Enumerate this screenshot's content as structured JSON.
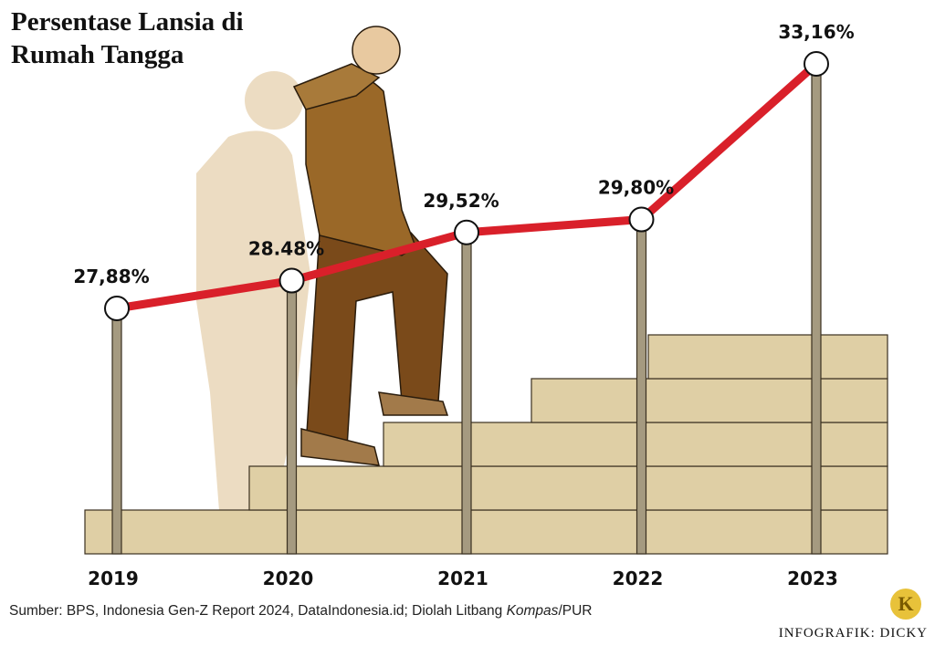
{
  "chart_data": {
    "type": "line",
    "title": "Persentase Lansia di Rumah Tangga",
    "categories": [
      "2019",
      "2020",
      "2021",
      "2022",
      "2023"
    ],
    "values": [
      27.88,
      28.48,
      29.52,
      29.8,
      33.16
    ],
    "value_labels": [
      "27,88%",
      "28.48%",
      "29,52%",
      "29,80%",
      "33,16%"
    ],
    "color": "#d9202a",
    "source": [
      "Sumber: BPS, Indonesia Gen-Z Report 2024, DataIndonesia.id; Diolah Litbang ",
      "Kompas",
      "/PUR"
    ],
    "credit": "INFOGRAFIK: DICKY",
    "logo": "K"
  }
}
